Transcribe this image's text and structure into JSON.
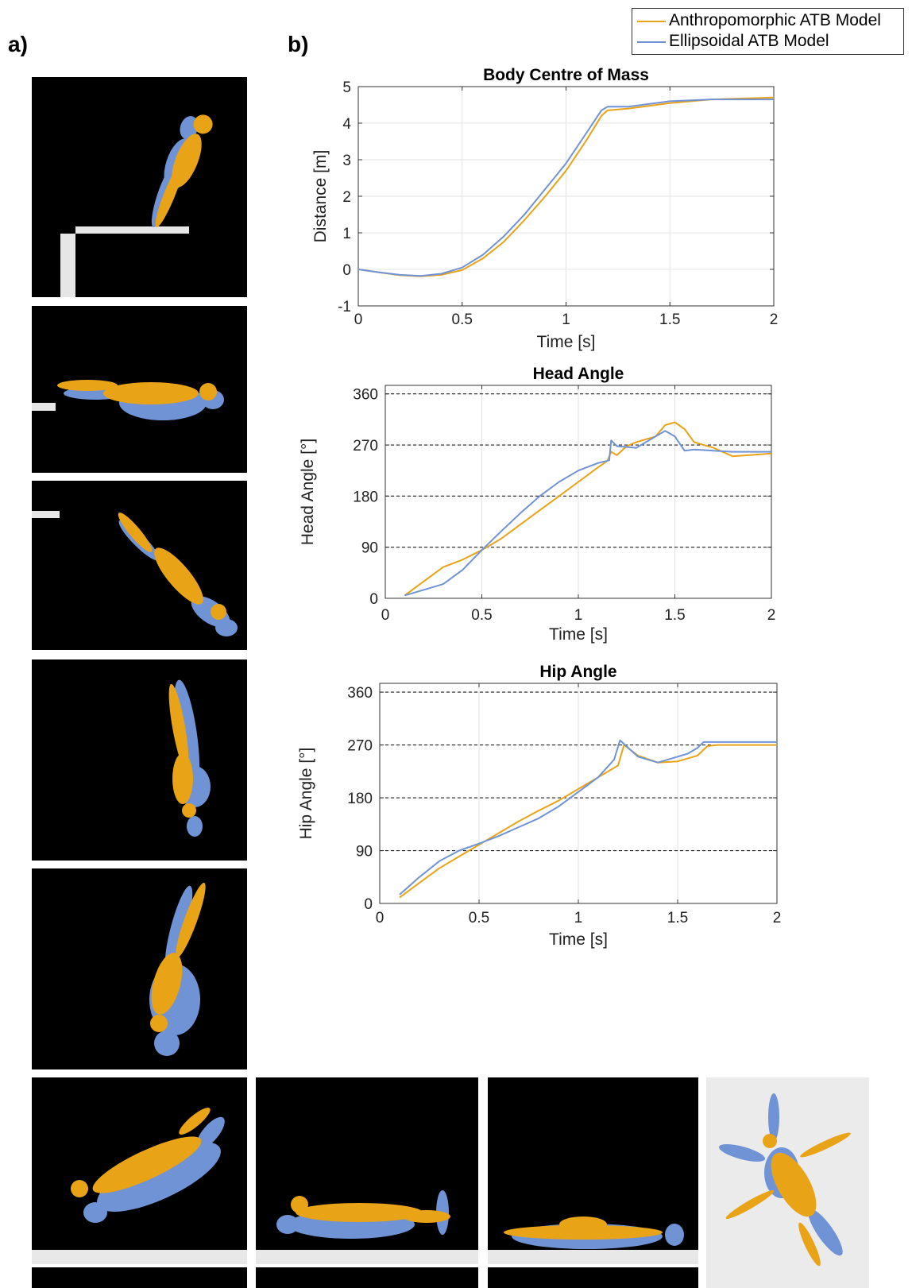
{
  "panel_labels": {
    "a": "a)",
    "b": "b)"
  },
  "colors": {
    "anthropomorphic": "#e8a317",
    "ellipsoidal": "#7093d6",
    "frame_bg": "#000000",
    "frame_light_bg": "#ebebeb",
    "board": "#e6e6e6"
  },
  "legend": {
    "items": [
      {
        "name": "Anthropomorphic ATB Model",
        "color": "#e8a317"
      },
      {
        "name": "Ellipsoidal ATB Model",
        "color": "#7093d6"
      }
    ]
  },
  "chart_data": [
    {
      "type": "line",
      "title": "Body Centre of Mass",
      "xlabel": "Time [s]",
      "ylabel": "Distance [m]",
      "xlim": [
        0,
        2
      ],
      "ylim": [
        -1,
        5
      ],
      "xticks": [
        "0",
        "0.5",
        "1",
        "1.5",
        "2"
      ],
      "yticks": [
        "-1",
        "0",
        "1",
        "2",
        "3",
        "4",
        "5"
      ],
      "xtick_values": [
        0,
        0.5,
        1,
        1.5,
        2
      ],
      "ytick_values": [
        -1,
        0,
        1,
        2,
        3,
        4,
        5
      ],
      "grid": true,
      "ref_lines": [],
      "series": [
        {
          "name": "Anthropomorphic ATB Model",
          "color": "#e8a317",
          "x": [
            0,
            0.1,
            0.2,
            0.3,
            0.4,
            0.5,
            0.6,
            0.7,
            0.8,
            0.9,
            1.0,
            1.1,
            1.17,
            1.2,
            1.3,
            1.5,
            1.7,
            2.0
          ],
          "y": [
            0,
            -0.08,
            -0.16,
            -0.19,
            -0.15,
            -0.02,
            0.3,
            0.75,
            1.35,
            2.0,
            2.7,
            3.55,
            4.2,
            4.35,
            4.4,
            4.55,
            4.65,
            4.7
          ]
        },
        {
          "name": "Ellipsoidal ATB Model",
          "color": "#7093d6",
          "x": [
            0,
            0.1,
            0.2,
            0.3,
            0.4,
            0.5,
            0.6,
            0.7,
            0.8,
            0.9,
            1.0,
            1.1,
            1.17,
            1.2,
            1.3,
            1.5,
            1.7,
            2.0
          ],
          "y": [
            0,
            -0.08,
            -0.15,
            -0.18,
            -0.12,
            0.05,
            0.4,
            0.9,
            1.5,
            2.2,
            2.9,
            3.75,
            4.35,
            4.45,
            4.45,
            4.6,
            4.65,
            4.65
          ]
        }
      ]
    },
    {
      "type": "line",
      "title": "Head Angle",
      "xlabel": "Time [s]",
      "ylabel": "Head Angle [°]",
      "xlim": [
        0,
        2
      ],
      "ylim": [
        0,
        375
      ],
      "xticks": [
        "0",
        "0.5",
        "1",
        "1.5",
        "2"
      ],
      "yticks": [
        "0",
        "90",
        "180",
        "270",
        "360"
      ],
      "xtick_values": [
        0,
        0.5,
        1,
        1.5,
        2
      ],
      "ytick_values": [
        0,
        90,
        180,
        270,
        360
      ],
      "grid": true,
      "ref_lines": [
        90,
        180,
        270,
        360
      ],
      "series": [
        {
          "name": "Anthropomorphic ATB Model",
          "color": "#e8a317",
          "x": [
            0.1,
            0.2,
            0.3,
            0.4,
            0.5,
            0.6,
            0.7,
            0.8,
            0.9,
            1.0,
            1.1,
            1.15,
            1.17,
            1.2,
            1.25,
            1.3,
            1.4,
            1.45,
            1.5,
            1.55,
            1.6,
            1.7,
            1.8,
            2.0
          ],
          "y": [
            5,
            30,
            55,
            68,
            85,
            105,
            130,
            155,
            180,
            205,
            230,
            242,
            258,
            252,
            268,
            275,
            285,
            305,
            310,
            298,
            275,
            265,
            250,
            255
          ]
        },
        {
          "name": "Ellipsoidal ATB Model",
          "color": "#7093d6",
          "x": [
            0.1,
            0.2,
            0.3,
            0.4,
            0.5,
            0.6,
            0.7,
            0.8,
            0.9,
            1.0,
            1.1,
            1.16,
            1.17,
            1.2,
            1.3,
            1.4,
            1.45,
            1.5,
            1.55,
            1.6,
            1.7,
            1.8,
            2.0
          ],
          "y": [
            5,
            15,
            25,
            50,
            85,
            118,
            150,
            180,
            205,
            225,
            238,
            243,
            278,
            268,
            265,
            285,
            295,
            285,
            260,
            262,
            260,
            258,
            258
          ]
        }
      ]
    },
    {
      "type": "line",
      "title": "Hip Angle",
      "xlabel": "Time [s]",
      "ylabel": "Hip Angle [°]",
      "xlim": [
        0,
        2
      ],
      "ylim": [
        0,
        375
      ],
      "xticks": [
        "0",
        "0.5",
        "1",
        "1.5",
        "2"
      ],
      "yticks": [
        "0",
        "90",
        "180",
        "270",
        "360"
      ],
      "xtick_values": [
        0,
        0.5,
        1,
        1.5,
        2
      ],
      "ytick_values": [
        0,
        90,
        180,
        270,
        360
      ],
      "grid": true,
      "ref_lines": [
        90,
        180,
        270,
        360
      ],
      "series": [
        {
          "name": "Anthropomorphic ATB Model",
          "color": "#e8a317",
          "x": [
            0.1,
            0.2,
            0.3,
            0.4,
            0.5,
            0.6,
            0.7,
            0.8,
            0.9,
            1.0,
            1.1,
            1.2,
            1.23,
            1.3,
            1.4,
            1.5,
            1.6,
            1.65,
            1.7,
            2.0
          ],
          "y": [
            10,
            35,
            60,
            80,
            100,
            120,
            140,
            158,
            175,
            195,
            215,
            235,
            270,
            252,
            240,
            242,
            252,
            268,
            270,
            270
          ]
        },
        {
          "name": "Ellipsoidal ATB Model",
          "color": "#7093d6",
          "x": [
            0.1,
            0.2,
            0.3,
            0.4,
            0.5,
            0.6,
            0.7,
            0.8,
            0.9,
            1.0,
            1.1,
            1.18,
            1.21,
            1.3,
            1.4,
            1.5,
            1.55,
            1.6,
            1.63,
            1.7,
            2.0
          ],
          "y": [
            15,
            45,
            72,
            90,
            102,
            115,
            130,
            145,
            165,
            190,
            215,
            245,
            278,
            250,
            240,
            250,
            255,
            265,
            275,
            275,
            275
          ]
        }
      ]
    }
  ]
}
